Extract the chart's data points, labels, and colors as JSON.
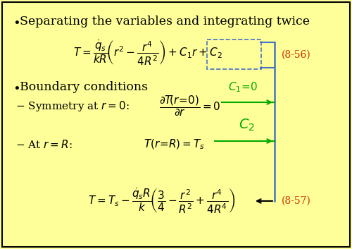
{
  "background_color": "#FFFF99",
  "border_color": "#000000",
  "bullet1": "Separating the variables and integrating twice",
  "bullet2": "Boundary conditions",
  "label_8_56": "(8-56)",
  "label_8_57": "(8-57)",
  "blue_color": "#4472C4",
  "green_color": "#00AA00",
  "orange_color": "#CC3300",
  "black_color": "#000000",
  "fs_title": 12.5,
  "fs_body": 11,
  "fs_math": 11,
  "fs_label": 10
}
